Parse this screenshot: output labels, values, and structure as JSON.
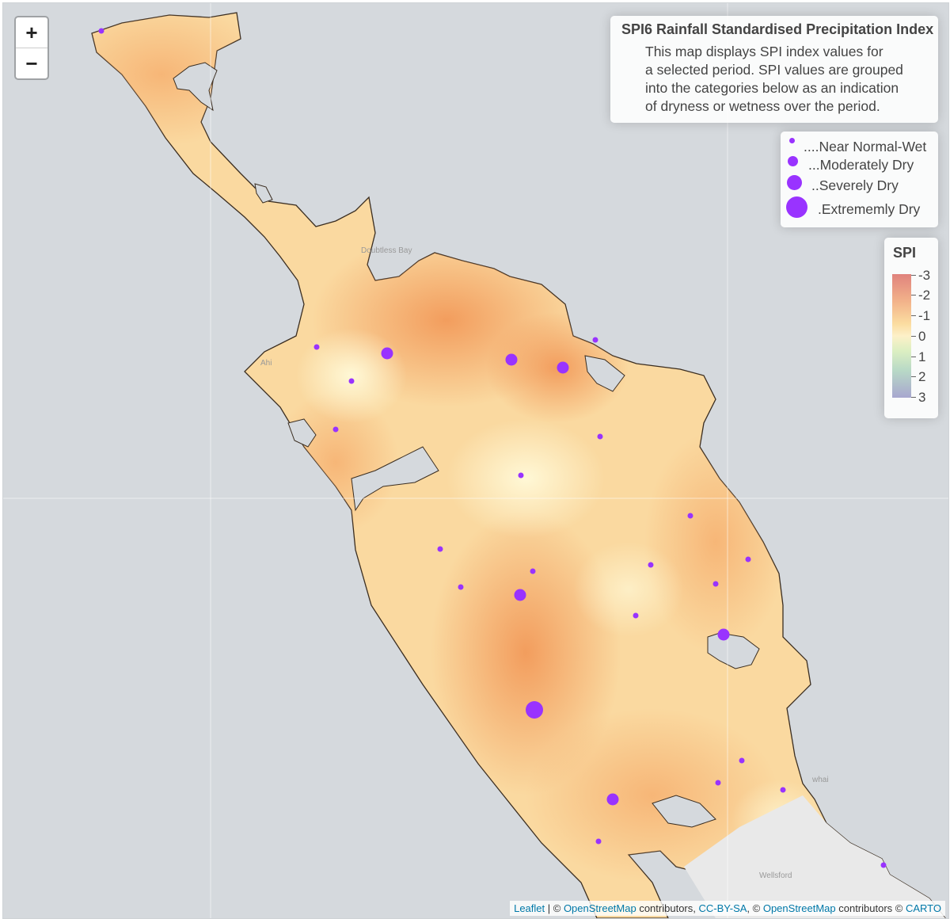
{
  "zoom": {
    "in_label": "+",
    "out_label": "−"
  },
  "info": {
    "title": "SPI6 Rainfall Standardised Precipitation Index",
    "lines": [
      "This map displays SPI index values for",
      "a selected period. SPI values are grouped",
      "into the categories below as an indication",
      "of dryness or wetness over the period."
    ]
  },
  "size_legend": {
    "items": [
      {
        "label": "....Near Normal-Wet"
      },
      {
        "label": "...Moderately Dry"
      },
      {
        "label": "..Severely Dry"
      },
      {
        "label": ".Extrememly Dry"
      }
    ]
  },
  "spi_legend": {
    "title": "SPI",
    "ticks": [
      "-3",
      "-2",
      "-1",
      "0",
      "1",
      "2",
      "3"
    ]
  },
  "place_labels": [
    "Doubtless Bay",
    "Wellsford",
    "Ahi",
    "whai"
  ],
  "attribution": {
    "leaflet": "Leaflet",
    "sep1": " | © ",
    "osm1": "OpenStreetMap",
    "text1": " contributors, ",
    "ccbysa": "CC-BY-SA",
    "sep2": ", © ",
    "osm2": "OpenStreetMap",
    "text2": " contributors © ",
    "carto": "CARTO"
  },
  "colors": {
    "marker": "#9933ff",
    "land_base": "#fad9a0",
    "dry_hotspot": "#f4a565",
    "wet_spot": "#fff6cf",
    "sea": "#d5d9dd"
  }
}
